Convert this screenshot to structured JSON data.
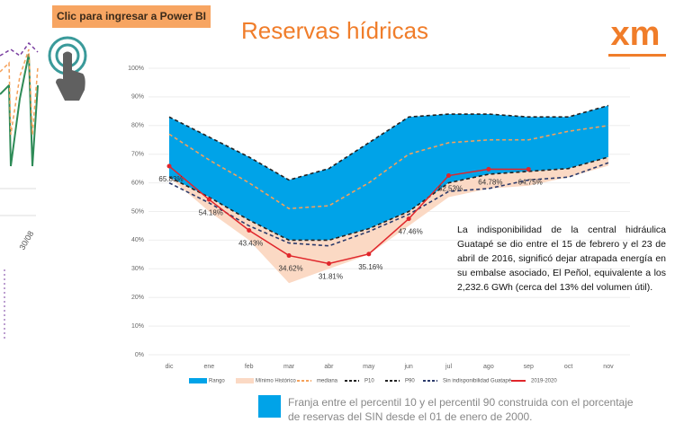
{
  "button": {
    "label": "Clic para ingresar a Power BI"
  },
  "logo": {
    "text": "xm"
  },
  "left_fragment": {
    "labels": [
      "30/08"
    ]
  },
  "chart_data": {
    "type": "line",
    "title": "Reservas hídricas",
    "categories": [
      "dic",
      "ene",
      "feb",
      "mar",
      "abr",
      "may",
      "jun",
      "jul",
      "ago",
      "sep",
      "oct",
      "nov"
    ],
    "ylim": [
      0,
      100
    ],
    "yticks": [
      {
        "value": 0,
        "label": "0%"
      },
      {
        "value": 10,
        "label": "10%"
      },
      {
        "value": 20,
        "label": "20%"
      },
      {
        "value": 30,
        "label": "30%"
      },
      {
        "value": 40,
        "label": "40%"
      },
      {
        "value": 50,
        "label": "50%"
      },
      {
        "value": 60,
        "label": "60%"
      },
      {
        "value": 70,
        "label": "70%"
      },
      {
        "value": 80,
        "label": "80%"
      },
      {
        "value": 90,
        "label": "90%"
      },
      {
        "value": 100,
        "label": "100%"
      }
    ],
    "series": [
      {
        "name": "Rango",
        "type": "band",
        "color": "#00a3e8",
        "values": [
          83,
          76,
          69,
          61,
          65,
          74,
          83,
          84,
          84,
          83,
          83,
          87
        ],
        "lower": [
          62,
          55,
          47,
          40,
          40,
          44,
          50,
          60,
          63,
          64,
          65,
          69
        ]
      },
      {
        "name": "Mínimo Histórico",
        "type": "band",
        "color": "#fbd9c4",
        "values": [
          62,
          55,
          47,
          40,
          40,
          44,
          50,
          60,
          63,
          64,
          65,
          69
        ],
        "lower": [
          62,
          50,
          40,
          25,
          30,
          35,
          45,
          55,
          58,
          59,
          62,
          66
        ]
      },
      {
        "name": "mediana",
        "type": "dashed",
        "color": "#f5a15a",
        "values": [
          77,
          68,
          60,
          51,
          52,
          60,
          70,
          74,
          75,
          75,
          78,
          80
        ]
      },
      {
        "name": "P10",
        "type": "dashed",
        "color": "#222222",
        "values": [
          62,
          55,
          47,
          40,
          40,
          44,
          50,
          60,
          63,
          64,
          65,
          69
        ]
      },
      {
        "name": "P90",
        "type": "dashed",
        "color": "#222222",
        "values": [
          83,
          76,
          69,
          61,
          65,
          74,
          83,
          84,
          84,
          83,
          83,
          87
        ]
      },
      {
        "name": "Sin indisponibilidad Guatapé",
        "type": "dashed",
        "color": "#2b3a6b",
        "values": [
          60,
          53,
          45,
          39,
          38,
          43,
          49,
          57,
          58,
          61,
          62,
          67
        ]
      },
      {
        "name": "2019-2020",
        "type": "solid",
        "color": "#e0262b",
        "values": [
          65.83,
          54.18,
          43.43,
          34.62,
          31.81,
          35.16,
          47.46,
          62.53,
          64.78,
          64.75,
          null,
          null
        ],
        "value_labels": [
          "65.83%",
          "54.18%",
          "43.43%",
          "34.62%",
          "31.81%",
          "35.16%",
          "47.46%",
          "62.53%",
          "64.78%",
          "64.75%",
          null,
          null
        ]
      }
    ],
    "annotation": "La indisponibilidad de la central hidráulica Guatapé se dio entre el 15 de febrero y el 23 de abril de 2016, significó dejar atrapada energía en su embalse asociado, El Peñol, equivalente a los 2,232.6 GWh (cerca del 13% del volumen útil).",
    "caption": "Franja entre el percentil 10 y el percentil 90 construida con el porcentaje de reservas del SIN desde el 01 de enero de 2000."
  }
}
